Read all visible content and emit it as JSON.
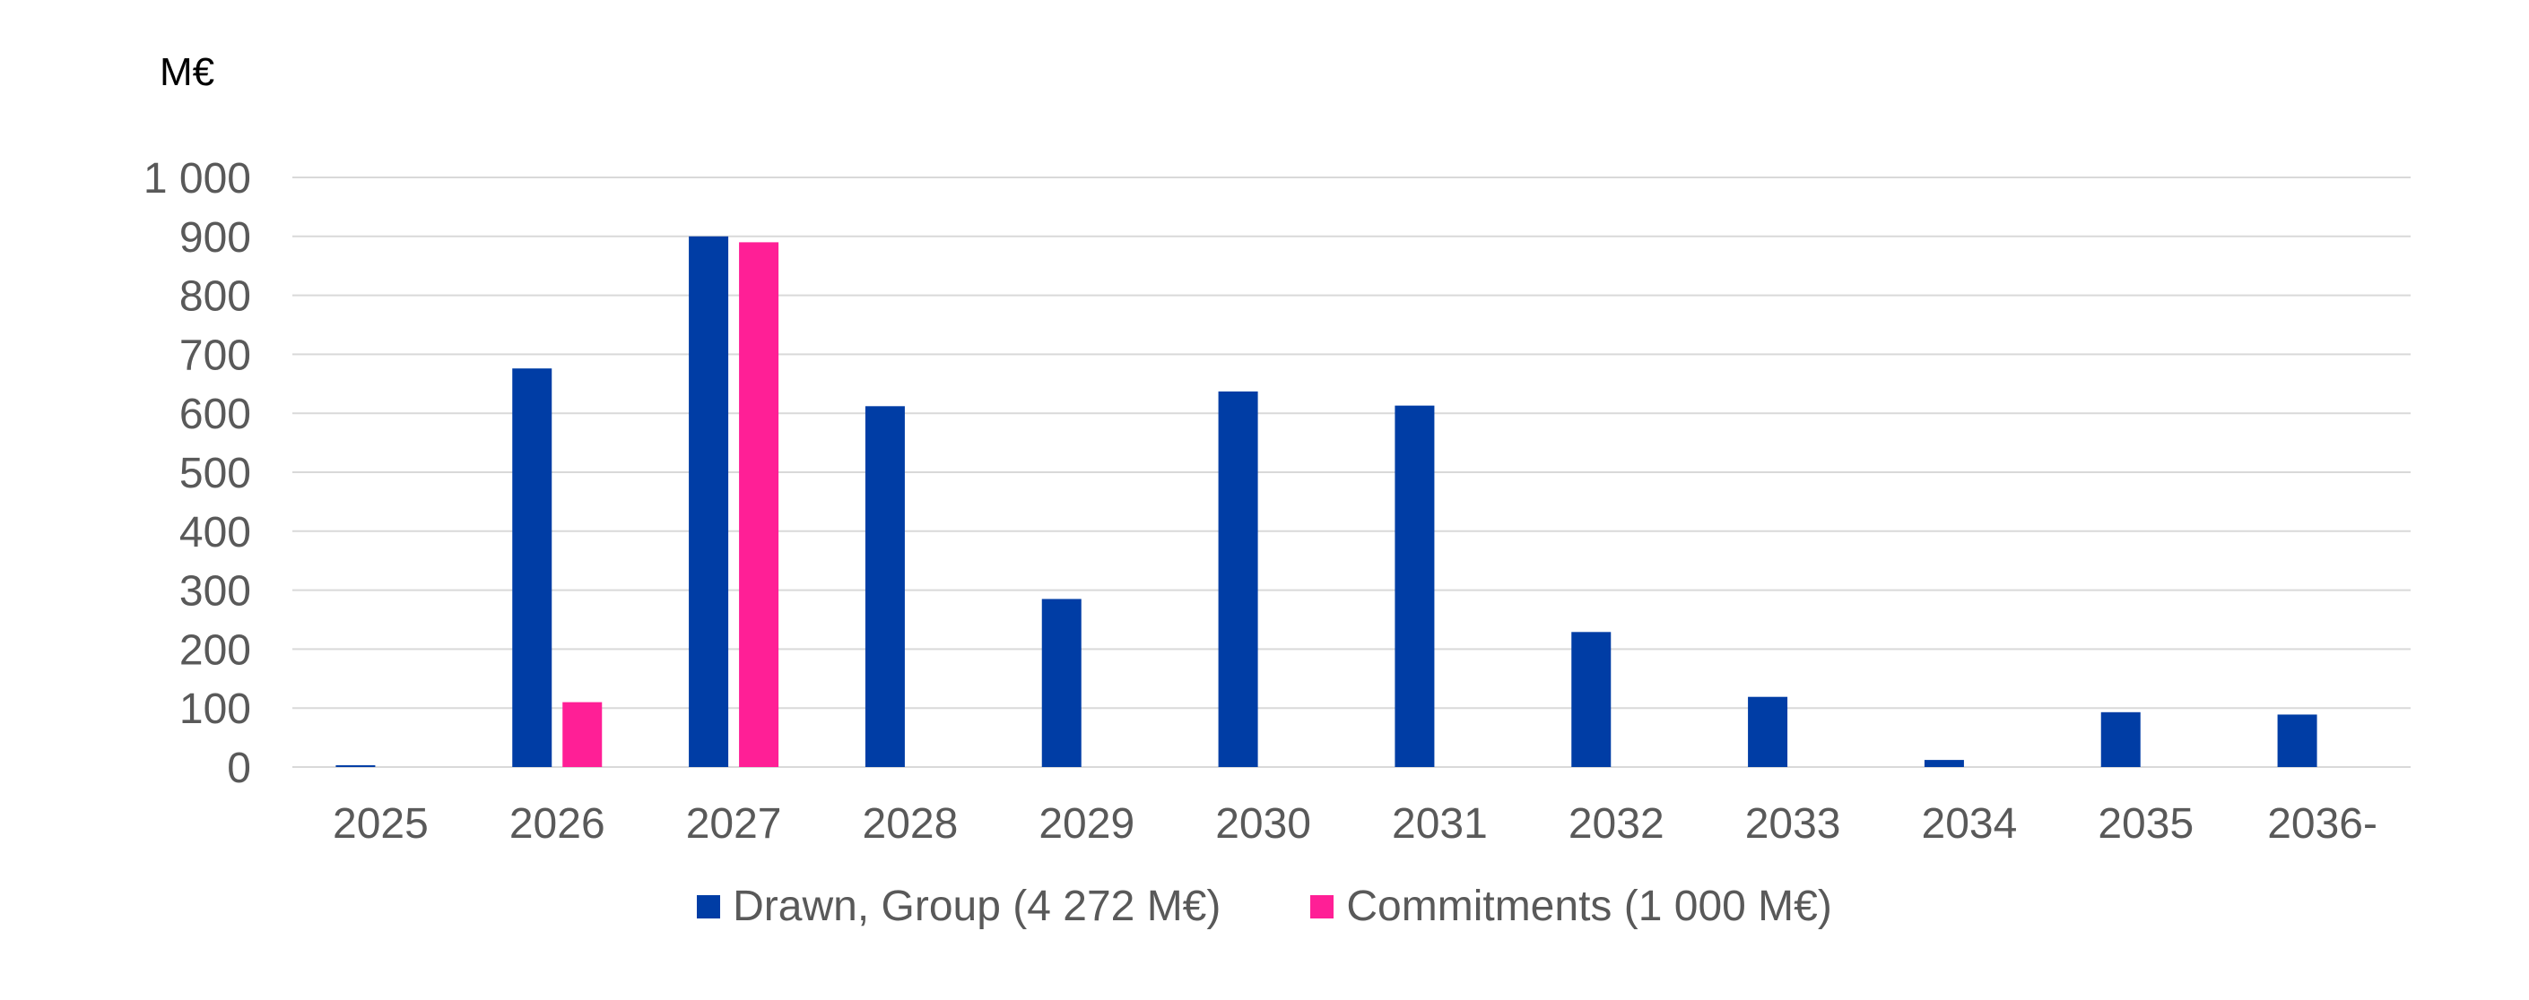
{
  "chart_data": {
    "type": "bar",
    "unit_label": "M€",
    "title": "",
    "xlabel": "",
    "ylabel": "",
    "categories": [
      "2025",
      "2026",
      "2027",
      "2028",
      "2029",
      "2030",
      "2031",
      "2032",
      "2033",
      "2034",
      "2035",
      "2036-"
    ],
    "series": [
      {
        "name": "Drawn, Group (4 272 M€)",
        "color": "#003DA5",
        "values": [
          3,
          676,
          900,
          612,
          285,
          637,
          613,
          229,
          119,
          12,
          93,
          89
        ]
      },
      {
        "name": "Commitments (1 000 M€)",
        "color": "#FF1F96",
        "values": [
          0,
          110,
          890,
          0,
          0,
          0,
          0,
          0,
          0,
          0,
          0,
          0
        ]
      }
    ],
    "ylim": [
      0,
      1000
    ],
    "yticks": [
      0,
      100,
      200,
      300,
      400,
      500,
      600,
      700,
      800,
      900,
      1000
    ],
    "ytick_labels": [
      "0",
      "100",
      "200",
      "300",
      "400",
      "500",
      "600",
      "700",
      "800",
      "900",
      "1 000"
    ],
    "grid": true,
    "legend_position": "bottom"
  }
}
